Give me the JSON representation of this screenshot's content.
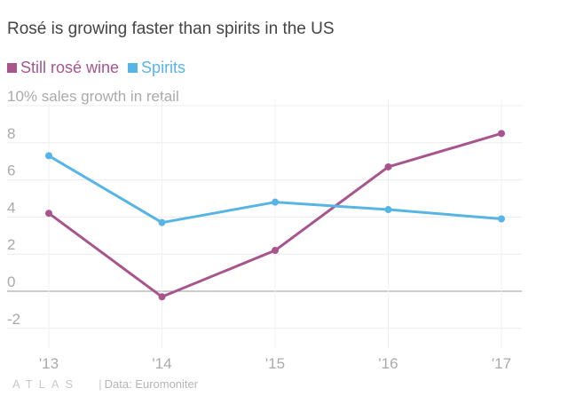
{
  "header": {
    "title": "Rosé is growing faster than spirits in the US"
  },
  "footer": {
    "brand": "ATLAS",
    "separator": "|",
    "source": "Data: Euromoniter"
  },
  "chart_data": {
    "type": "line",
    "title": "Rosé is growing faster than spirits in the US",
    "ylabel": "% sales growth in retail",
    "categories": [
      "'13",
      "'14",
      "'15",
      "'16",
      "'17"
    ],
    "ylim": [
      -3,
      10
    ],
    "yticks": [
      -2,
      0,
      2,
      4,
      6,
      8,
      10
    ],
    "ytick_labels": [
      "-2",
      "0",
      "2",
      "4",
      "6",
      "8",
      "10"
    ],
    "grid": true,
    "legend_position": "top-left",
    "series": [
      {
        "name": "Still rosé wine",
        "color": "#a8558d",
        "values": [
          4.2,
          -0.3,
          2.2,
          6.7,
          8.5
        ]
      },
      {
        "name": "Spirits",
        "color": "#57b5e6",
        "values": [
          7.3,
          3.7,
          4.8,
          4.4,
          3.9
        ]
      }
    ]
  }
}
